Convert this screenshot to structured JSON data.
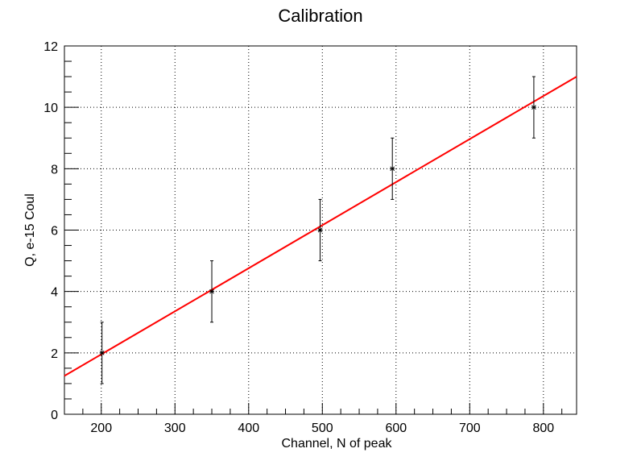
{
  "chart_data": {
    "type": "scatter",
    "title": "Calibration",
    "xlabel": "Channel, N of peak",
    "ylabel": "Q, e-15 Coul",
    "xlim": [
      150,
      845
    ],
    "ylim": [
      0,
      12
    ],
    "x_ticks": [
      200,
      300,
      400,
      500,
      600,
      700,
      800
    ],
    "y_ticks": [
      0,
      2,
      4,
      6,
      8,
      10,
      12
    ],
    "grid": true,
    "points": [
      {
        "x": 201,
        "y": 2,
        "yerr": 1
      },
      {
        "x": 350,
        "y": 4,
        "yerr": 1
      },
      {
        "x": 497,
        "y": 6,
        "yerr": 1
      },
      {
        "x": 595,
        "y": 8,
        "yerr": 1
      },
      {
        "x": 787,
        "y": 10,
        "yerr": 1
      }
    ],
    "fit_line": {
      "color": "#ff0000",
      "x": [
        150,
        845
      ],
      "y": [
        1.25,
        11.0
      ]
    },
    "marker_color": "#000000"
  }
}
